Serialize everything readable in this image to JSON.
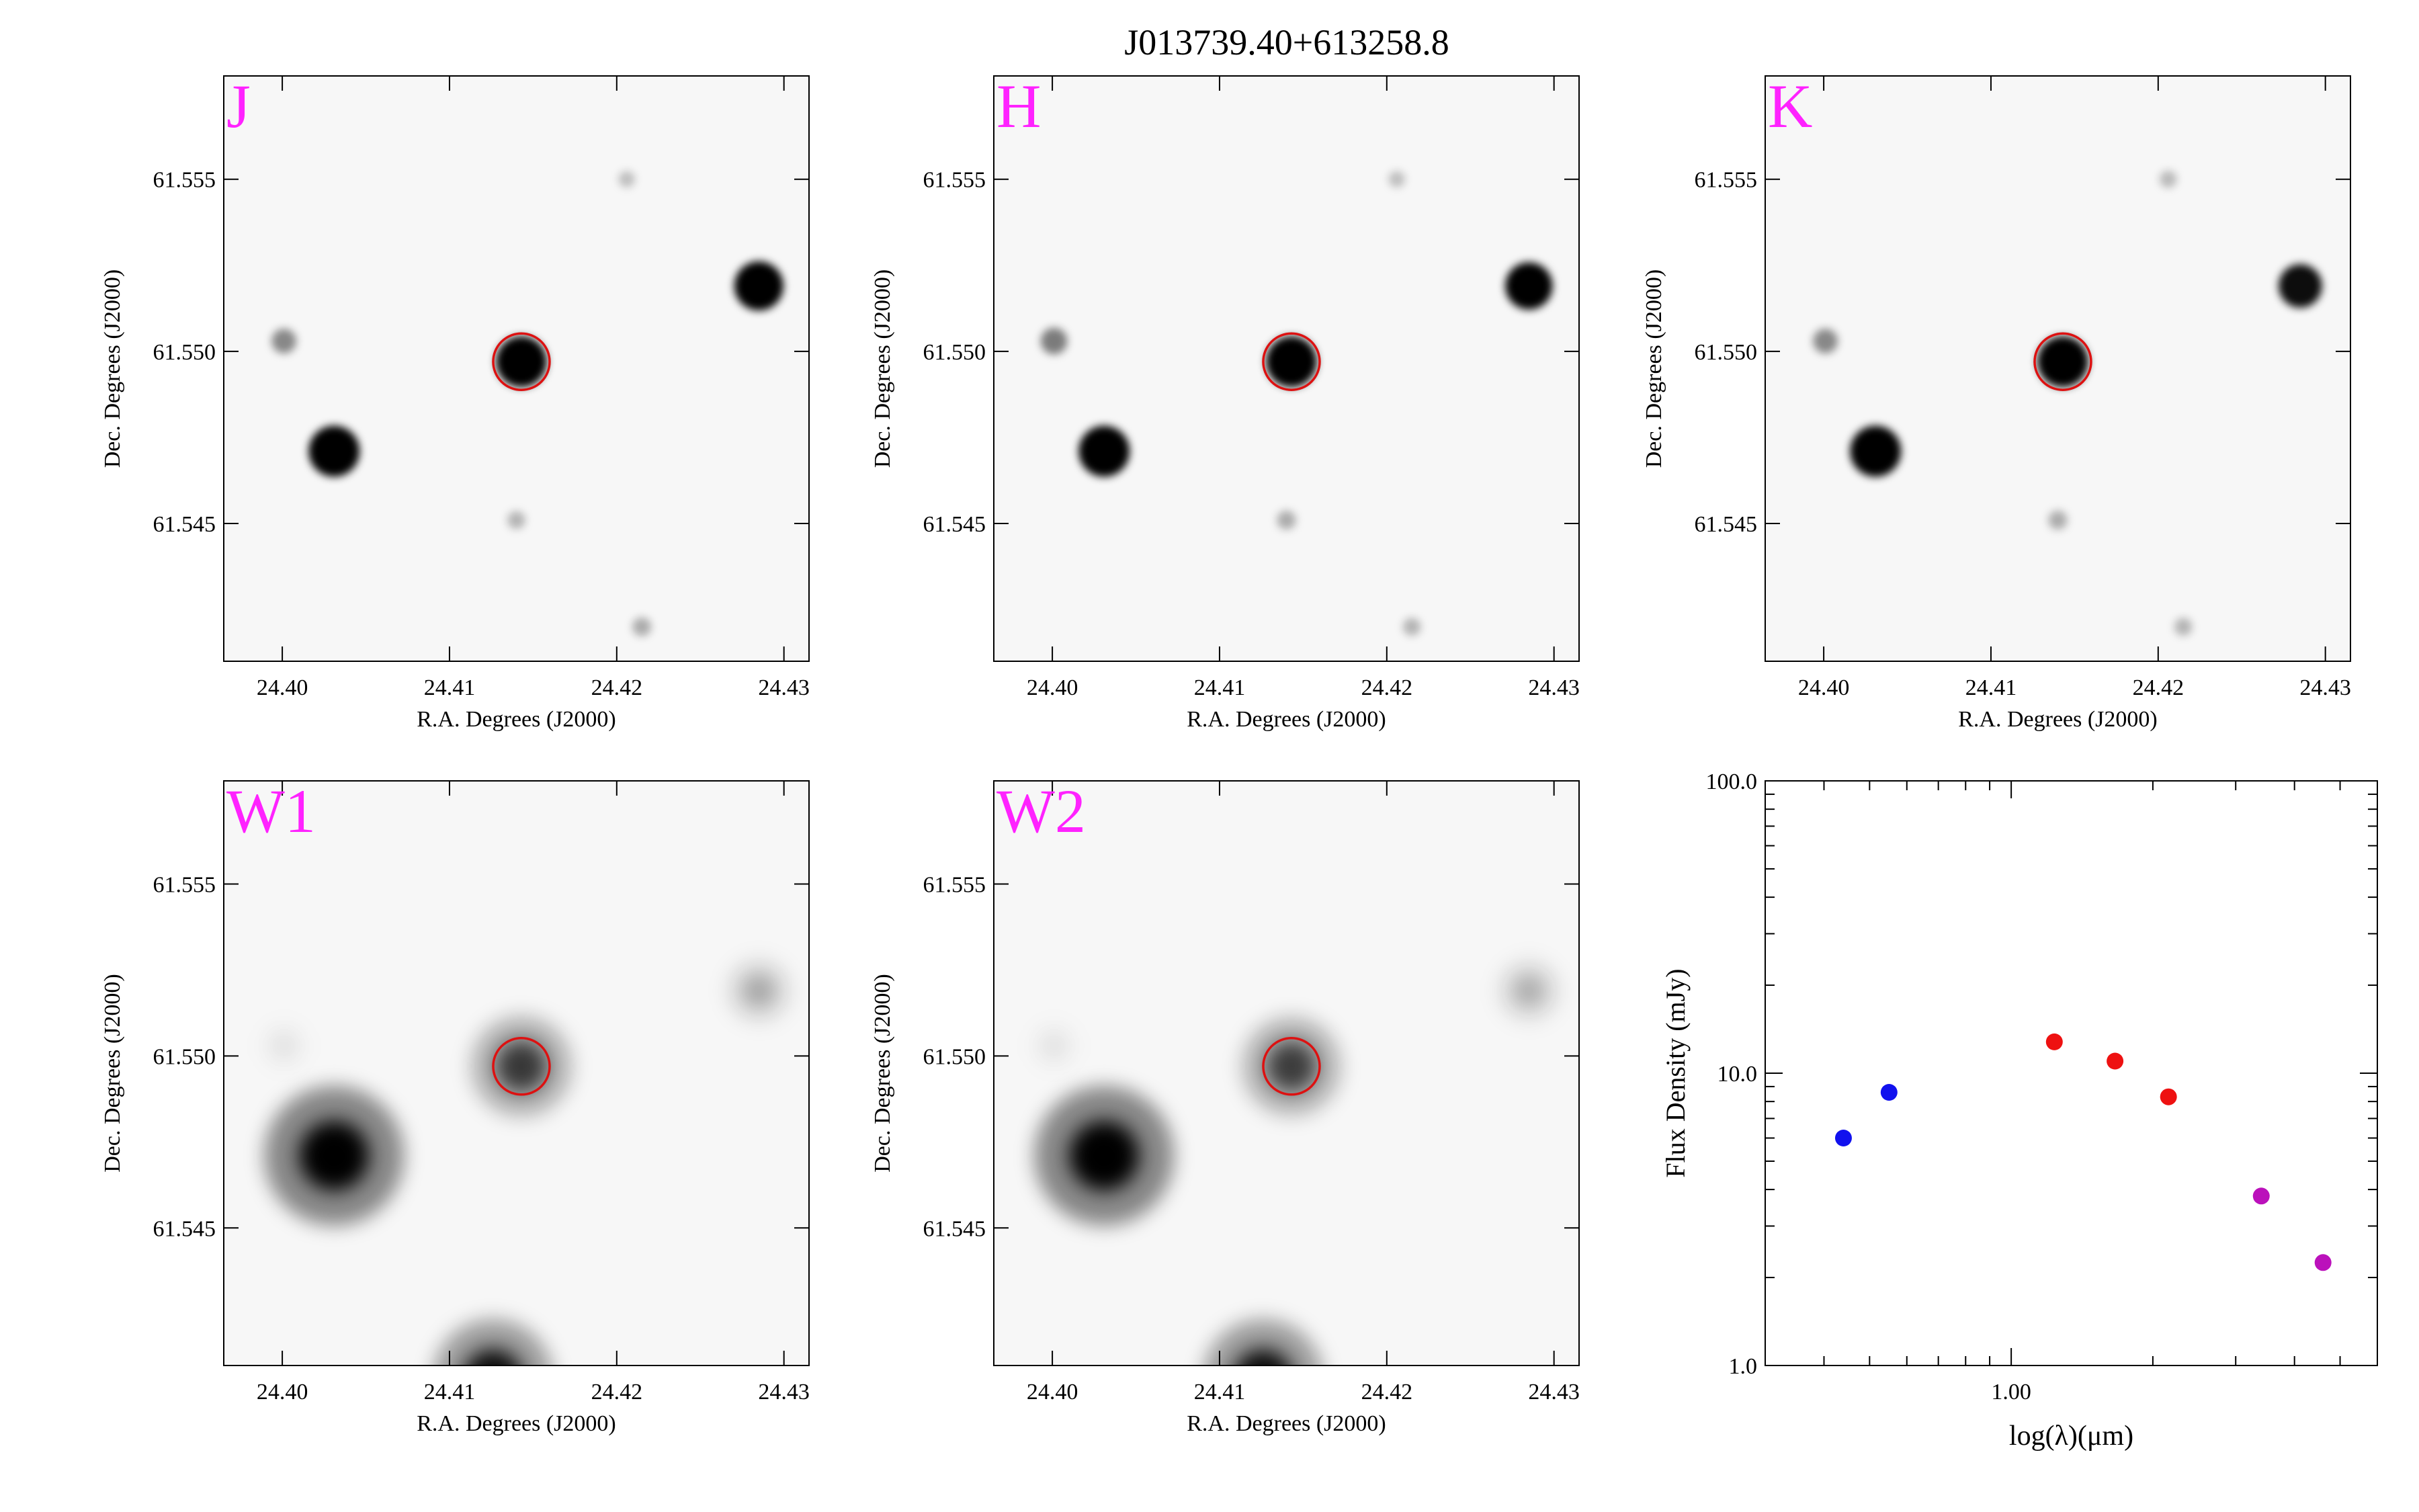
{
  "title": "J013739.40+613258.8",
  "colors": {
    "band_label": "#ff22ff",
    "aperture": "#dd1111",
    "twomass": "#ee1111",
    "optical": "#1111ee",
    "wise": "#bb11bb"
  },
  "chart_data": [
    {
      "type": "image",
      "band": "J",
      "xlabel": "R.A. Degrees (J2000)",
      "ylabel": "Dec. Degrees (J2000)",
      "xlim": [
        24.3965,
        24.4315
      ],
      "ylim": [
        61.541,
        61.558
      ],
      "xticks": [
        "24.40",
        "24.41",
        "24.42",
        "24.43"
      ],
      "yticks": [
        "61.545",
        "61.550",
        "61.555"
      ],
      "target": {
        "ra": 24.4143,
        "dec": 61.5497
      },
      "sources": [
        {
          "ra": 24.4143,
          "dec": 61.5497,
          "strength": 1.0
        },
        {
          "ra": 24.4031,
          "dec": 61.5471,
          "strength": 1.0
        },
        {
          "ra": 24.4285,
          "dec": 61.5519,
          "strength": 0.95
        },
        {
          "ra": 24.4001,
          "dec": 61.5503,
          "strength": 0.3
        },
        {
          "ra": 24.414,
          "dec": 61.5451,
          "strength": 0.12
        },
        {
          "ra": 24.4215,
          "dec": 61.542,
          "strength": 0.15
        },
        {
          "ra": 24.4206,
          "dec": 61.555,
          "strength": 0.08
        }
      ]
    },
    {
      "type": "image",
      "band": "H",
      "xlabel": "R.A. Degrees (J2000)",
      "ylabel": "Dec. Degrees (J2000)",
      "xlim": [
        24.3965,
        24.4315
      ],
      "ylim": [
        61.541,
        61.558
      ],
      "xticks": [
        "24.40",
        "24.41",
        "24.42",
        "24.43"
      ],
      "yticks": [
        "61.545",
        "61.550",
        "61.555"
      ],
      "target": {
        "ra": 24.4143,
        "dec": 61.5497
      },
      "sources": [
        {
          "ra": 24.4143,
          "dec": 61.5497,
          "strength": 1.0
        },
        {
          "ra": 24.4031,
          "dec": 61.5471,
          "strength": 1.0
        },
        {
          "ra": 24.4285,
          "dec": 61.5519,
          "strength": 0.9
        },
        {
          "ra": 24.4001,
          "dec": 61.5503,
          "strength": 0.35
        },
        {
          "ra": 24.414,
          "dec": 61.5451,
          "strength": 0.15
        },
        {
          "ra": 24.4215,
          "dec": 61.542,
          "strength": 0.12
        },
        {
          "ra": 24.4206,
          "dec": 61.555,
          "strength": 0.08
        }
      ]
    },
    {
      "type": "image",
      "band": "K",
      "xlabel": "R.A. Degrees (J2000)",
      "ylabel": "Dec. Degrees (J2000)",
      "xlim": [
        24.3965,
        24.4315
      ],
      "ylim": [
        61.541,
        61.558
      ],
      "xticks": [
        "24.40",
        "24.41",
        "24.42",
        "24.43"
      ],
      "yticks": [
        "61.545",
        "61.550",
        "61.555"
      ],
      "target": {
        "ra": 24.4143,
        "dec": 61.5497
      },
      "sources": [
        {
          "ra": 24.4143,
          "dec": 61.5497,
          "strength": 1.0
        },
        {
          "ra": 24.4031,
          "dec": 61.5471,
          "strength": 1.0
        },
        {
          "ra": 24.4285,
          "dec": 61.5519,
          "strength": 0.8
        },
        {
          "ra": 24.4001,
          "dec": 61.5503,
          "strength": 0.3
        },
        {
          "ra": 24.414,
          "dec": 61.5451,
          "strength": 0.15
        },
        {
          "ra": 24.4215,
          "dec": 61.542,
          "strength": 0.12
        },
        {
          "ra": 24.4206,
          "dec": 61.555,
          "strength": 0.1
        }
      ]
    },
    {
      "type": "image",
      "band": "W1",
      "xlabel": "R.A. Degrees (J2000)",
      "ylabel": "Dec. Degrees (J2000)",
      "xlim": [
        24.3965,
        24.4315
      ],
      "ylim": [
        61.541,
        61.558
      ],
      "xticks": [
        "24.40",
        "24.41",
        "24.42",
        "24.43"
      ],
      "yticks": [
        "61.545",
        "61.550",
        "61.555"
      ],
      "target": {
        "ra": 24.4143,
        "dec": 61.5497
      },
      "sources": [
        {
          "ra": 24.4031,
          "dec": 61.5471,
          "strength": 1.0
        },
        {
          "ra": 24.4143,
          "dec": 61.5497,
          "strength": 0.6
        },
        {
          "ra": 24.4285,
          "dec": 61.5519,
          "strength": 0.22
        },
        {
          "ra": 24.4126,
          "dec": 61.5406,
          "strength": 0.8
        },
        {
          "ra": 24.4001,
          "dec": 61.5503,
          "strength": 0.05
        }
      ]
    },
    {
      "type": "image",
      "band": "W2",
      "xlabel": "R.A. Degrees (J2000)",
      "ylabel": "Dec. Degrees (J2000)",
      "xlim": [
        24.3965,
        24.4315
      ],
      "ylim": [
        61.541,
        61.558
      ],
      "xticks": [
        "24.40",
        "24.41",
        "24.42",
        "24.43"
      ],
      "yticks": [
        "61.545",
        "61.550",
        "61.555"
      ],
      "target": {
        "ra": 24.4143,
        "dec": 61.5497
      },
      "sources": [
        {
          "ra": 24.4031,
          "dec": 61.5471,
          "strength": 1.0
        },
        {
          "ra": 24.4143,
          "dec": 61.5497,
          "strength": 0.58
        },
        {
          "ra": 24.4285,
          "dec": 61.5519,
          "strength": 0.2
        },
        {
          "ra": 24.4126,
          "dec": 61.5406,
          "strength": 0.8
        },
        {
          "ra": 24.4001,
          "dec": 61.5503,
          "strength": 0.05
        }
      ]
    },
    {
      "type": "scatter",
      "scale": "log-log",
      "xlabel": "log(λ)(μm)",
      "ylabel": "Flux Density (mJy)",
      "xlim": [
        0.3,
        6.0
      ],
      "ylim": [
        1.0,
        100.0
      ],
      "xticks": [
        "1.00"
      ],
      "yticks": [
        "1.0",
        "10.0",
        "100.0"
      ],
      "series": [
        {
          "color_key": "optical",
          "points": [
            {
              "x": 0.44,
              "y": 6.0
            },
            {
              "x": 0.55,
              "y": 8.6
            }
          ]
        },
        {
          "color_key": "twomass",
          "points": [
            {
              "x": 1.235,
              "y": 12.8
            },
            {
              "x": 1.662,
              "y": 11.0
            },
            {
              "x": 2.159,
              "y": 8.3
            }
          ]
        },
        {
          "color_key": "wise",
          "points": [
            {
              "x": 3.4,
              "y": 3.8
            },
            {
              "x": 4.6,
              "y": 2.25
            }
          ]
        }
      ]
    }
  ]
}
